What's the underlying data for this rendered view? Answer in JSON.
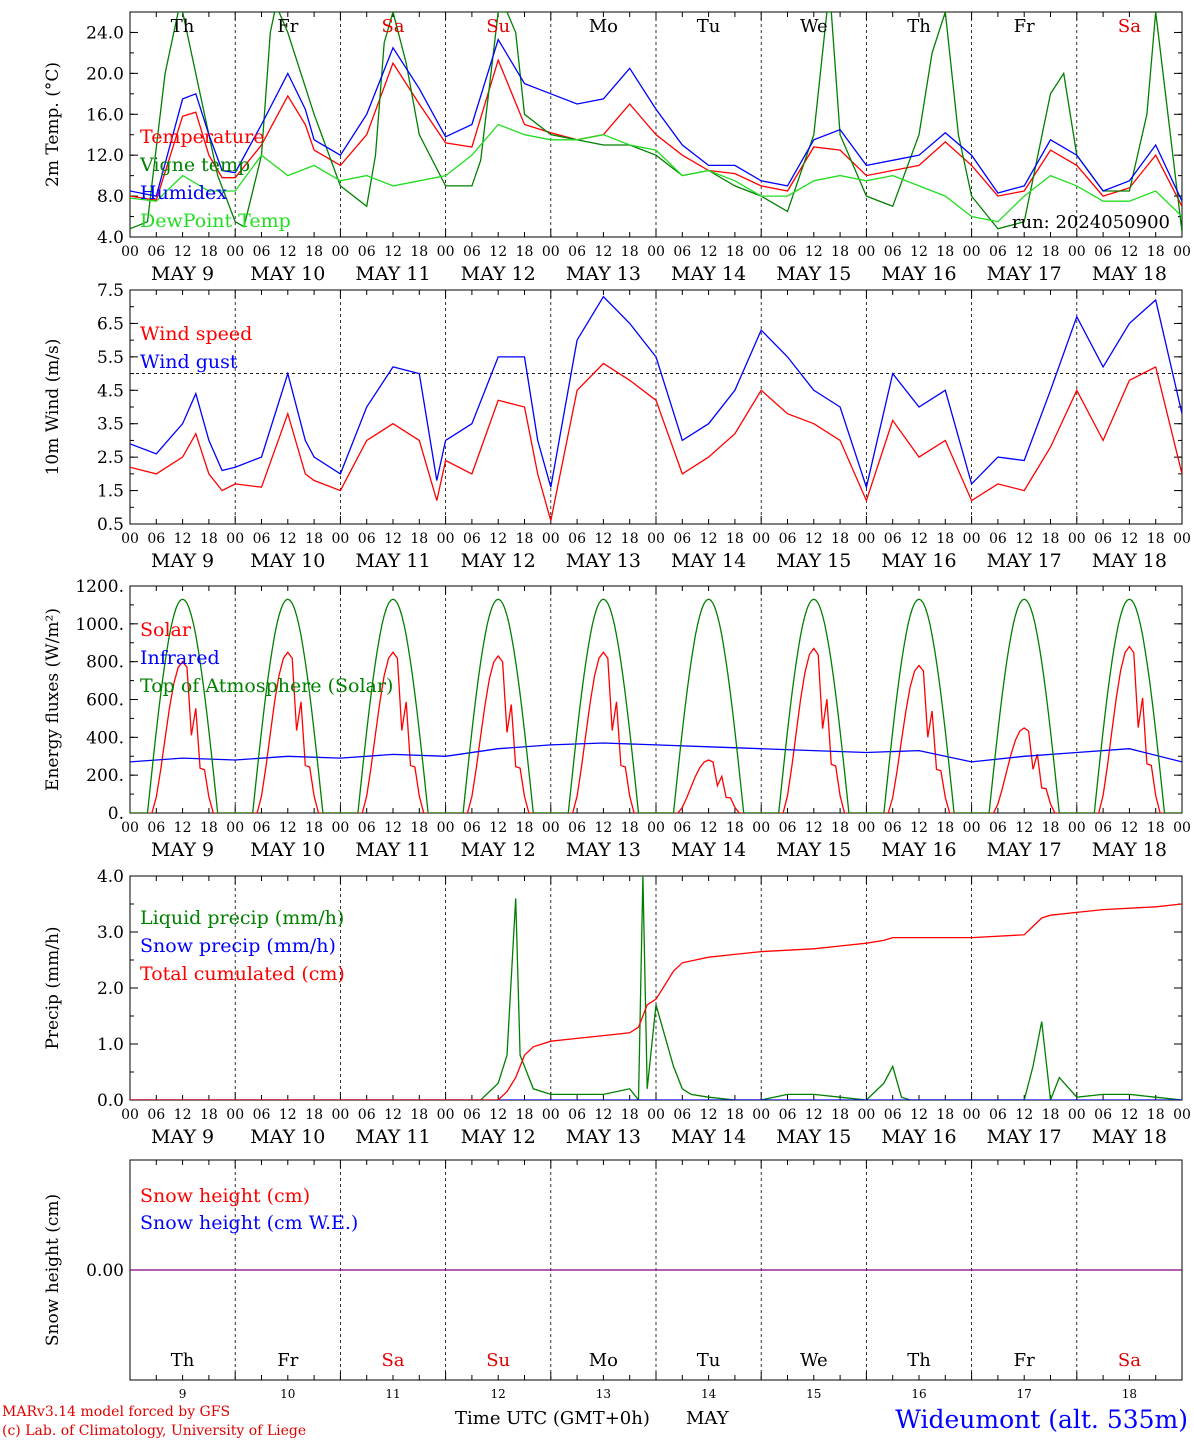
{
  "meta": {
    "run_label": "run: 2024050900",
    "credit_model": "MARv3.14 model forced by GFS",
    "credit_lab": "(c) Lab. of Climatology, University of Liege",
    "station": "Wideumont (alt. 535m)",
    "xaxis_title": "Time UTC (GMT+0h)",
    "month_label": "MAY"
  },
  "days": {
    "weekday": [
      "Th",
      "Fr",
      "Sa",
      "Su",
      "Mo",
      "Tu",
      "We",
      "Th",
      "Fr",
      "Sa"
    ],
    "weekday_colors": [
      "#000000",
      "#000000",
      "#e00000",
      "#e00000",
      "#000000",
      "#000000",
      "#000000",
      "#000000",
      "#000000",
      "#e00000"
    ],
    "date_labels": [
      "MAY  9",
      "MAY 10",
      "MAY 11",
      "MAY 12",
      "MAY 13",
      "MAY 14",
      "MAY 15",
      "MAY 16",
      "MAY 17",
      "MAY 18"
    ],
    "day_numbers": [
      "9",
      "10",
      "11",
      "12",
      "13",
      "14",
      "15",
      "16",
      "17",
      "18"
    ],
    "hour_ticks": [
      "00",
      "06",
      "12",
      "18"
    ],
    "final_tick": "00"
  },
  "colors": {
    "red": "#ff0000",
    "green": "#008000",
    "blue": "#0000ff",
    "lightgreen": "#22dd22",
    "purple": "#800080"
  },
  "chart_data": [
    {
      "type": "line",
      "id": "temp",
      "ylabel": "2m Temp. (°C)",
      "ylim": [
        4.0,
        26.0
      ],
      "yticks": [
        "4.0",
        "8.0",
        "12.0",
        "16.0",
        "20.0",
        "24.0"
      ],
      "ytick_values": [
        4,
        8,
        12,
        16,
        20,
        24
      ],
      "x_unit": "hours since MAY 9 00 UTC",
      "series": [
        {
          "name": "Temperature",
          "color": "red",
          "x": [
            0,
            6,
            12,
            15,
            18,
            21,
            24,
            30,
            36,
            40,
            42,
            48,
            54,
            60,
            66,
            72,
            78,
            84,
            90,
            96,
            102,
            108,
            114,
            120,
            126,
            132,
            138,
            144,
            150,
            156,
            162,
            168,
            174,
            180,
            186,
            192,
            198,
            204,
            210,
            216,
            222,
            228,
            234,
            240
          ],
          "y": [
            8.0,
            7.6,
            15.8,
            16.2,
            12.0,
            9.8,
            9.8,
            13.0,
            17.8,
            15.0,
            12.5,
            11.0,
            14.0,
            21.0,
            17.0,
            13.2,
            12.8,
            21.3,
            15.0,
            14.2,
            13.5,
            14.0,
            17.0,
            14.0,
            12.0,
            10.5,
            10.2,
            9.0,
            8.5,
            12.8,
            12.5,
            10.0,
            10.5,
            11.0,
            13.3,
            11.0,
            8.0,
            8.5,
            12.5,
            11.0,
            8.0,
            8.8,
            12.0,
            7.0
          ]
        },
        {
          "name": "Vigne temp",
          "color": "green",
          "x": [
            0,
            4,
            8,
            10,
            11,
            12,
            13,
            16,
            20,
            24,
            26,
            30,
            32,
            33,
            34,
            36,
            42,
            48,
            54,
            56,
            58,
            60,
            63,
            66,
            72,
            78,
            80,
            84,
            86,
            88,
            90,
            96,
            108,
            114,
            120,
            126,
            132,
            138,
            144,
            150,
            156,
            159,
            160,
            162,
            168,
            174,
            180,
            183,
            186,
            189,
            192,
            198,
            204,
            210,
            213,
            216,
            222,
            228,
            232,
            234,
            240
          ],
          "y": [
            4.8,
            5.5,
            20.0,
            24.0,
            26.0,
            26.0,
            24.0,
            18.0,
            10.0,
            5.5,
            5.0,
            12.0,
            24.0,
            26.0,
            26.0,
            24.0,
            16.0,
            9.0,
            7.0,
            12.0,
            23.0,
            26.0,
            21.0,
            14.0,
            9.0,
            9.0,
            11.5,
            26.0,
            26.0,
            24.0,
            16.0,
            14.0,
            13.0,
            13.0,
            12.0,
            10.0,
            10.5,
            9.0,
            8.0,
            6.5,
            14.0,
            26.0,
            26.0,
            14.0,
            8.0,
            7.0,
            14.0,
            22.0,
            26.0,
            14.0,
            8.0,
            4.8,
            5.5,
            18.0,
            20.0,
            12.0,
            8.5,
            8.5,
            16.0,
            26.0,
            4.5
          ]
        },
        {
          "name": "Humidex",
          "color": "blue",
          "x": [
            0,
            6,
            12,
            15,
            18,
            21,
            24,
            30,
            36,
            40,
            42,
            48,
            54,
            60,
            66,
            72,
            78,
            84,
            90,
            96,
            102,
            108,
            114,
            120,
            126,
            132,
            138,
            144,
            150,
            156,
            162,
            168,
            174,
            180,
            186,
            192,
            198,
            204,
            210,
            216,
            222,
            228,
            234,
            240
          ],
          "y": [
            8.5,
            8.0,
            17.5,
            18.0,
            14.0,
            10.5,
            10.3,
            15.0,
            20.0,
            16.5,
            13.5,
            12.0,
            16.0,
            22.5,
            18.5,
            13.8,
            15.0,
            23.3,
            19.0,
            18.0,
            17.0,
            17.5,
            20.5,
            16.5,
            13.0,
            11.0,
            11.0,
            9.5,
            9.0,
            13.5,
            14.5,
            11.0,
            11.5,
            12.0,
            14.2,
            12.0,
            8.3,
            9.0,
            13.5,
            12.0,
            8.5,
            9.5,
            13.0,
            7.5
          ]
        },
        {
          "name": "DewPoint Temp",
          "color": "lightgreen",
          "x": [
            0,
            6,
            12,
            18,
            24,
            30,
            36,
            42,
            48,
            54,
            60,
            66,
            72,
            78,
            84,
            90,
            96,
            102,
            108,
            114,
            120,
            126,
            132,
            138,
            144,
            150,
            156,
            162,
            168,
            174,
            180,
            186,
            192,
            198,
            204,
            210,
            216,
            222,
            228,
            234,
            240
          ],
          "y": [
            7.8,
            7.5,
            10.0,
            8.5,
            8.5,
            12.0,
            10.0,
            11.0,
            9.5,
            10.0,
            9.0,
            9.5,
            10.0,
            12.0,
            15.0,
            14.0,
            13.5,
            13.5,
            14.0,
            13.0,
            12.5,
            10.0,
            10.5,
            9.5,
            8.0,
            8.0,
            9.5,
            10.0,
            9.5,
            10.0,
            9.0,
            8.0,
            6.0,
            5.5,
            8.0,
            10.0,
            9.0,
            7.5,
            7.5,
            8.5,
            6.0
          ]
        }
      ]
    },
    {
      "type": "line",
      "id": "wind",
      "ylabel": "10m Wind (m/s)",
      "ylim": [
        0.5,
        7.5
      ],
      "yticks": [
        "0.5",
        "1.5",
        "2.5",
        "3.5",
        "4.5",
        "5.5",
        "6.5",
        "7.5"
      ],
      "ytick_values": [
        0.5,
        1.5,
        2.5,
        3.5,
        4.5,
        5.5,
        6.5,
        7.5
      ],
      "reference_line": 5.0,
      "series": [
        {
          "name": "Wind speed",
          "color": "red",
          "x": [
            0,
            6,
            12,
            15,
            18,
            21,
            24,
            30,
            36,
            40,
            42,
            48,
            54,
            60,
            66,
            70,
            72,
            78,
            84,
            90,
            93,
            96,
            102,
            108,
            114,
            120,
            126,
            132,
            138,
            144,
            150,
            156,
            162,
            168,
            174,
            180,
            186,
            192,
            198,
            204,
            210,
            216,
            222,
            228,
            234,
            240
          ],
          "y": [
            2.2,
            2.0,
            2.5,
            3.2,
            2.0,
            1.5,
            1.7,
            1.6,
            3.8,
            2.0,
            1.8,
            1.5,
            3.0,
            3.5,
            3.0,
            1.2,
            2.4,
            2.0,
            4.2,
            4.0,
            2.0,
            0.6,
            4.5,
            5.3,
            4.8,
            4.2,
            2.0,
            2.5,
            3.2,
            4.5,
            3.8,
            3.5,
            3.0,
            1.2,
            3.6,
            2.5,
            3.0,
            1.2,
            1.7,
            1.5,
            2.8,
            4.5,
            3.0,
            4.8,
            5.2,
            2.0
          ]
        },
        {
          "name": "Wind gust",
          "color": "blue",
          "x": [
            0,
            6,
            12,
            15,
            18,
            21,
            24,
            30,
            36,
            40,
            42,
            48,
            54,
            60,
            66,
            70,
            72,
            78,
            84,
            90,
            93,
            96,
            102,
            108,
            114,
            120,
            126,
            132,
            138,
            144,
            150,
            156,
            162,
            168,
            174,
            180,
            186,
            192,
            198,
            204,
            210,
            216,
            222,
            228,
            234,
            240
          ],
          "y": [
            2.9,
            2.6,
            3.5,
            4.4,
            3.0,
            2.1,
            2.2,
            2.5,
            5.0,
            3.0,
            2.5,
            2.0,
            4.0,
            5.2,
            5.0,
            1.8,
            3.0,
            3.5,
            5.5,
            5.5,
            3.0,
            1.6,
            6.0,
            7.3,
            6.5,
            5.5,
            3.0,
            3.5,
            4.5,
            6.3,
            5.5,
            4.5,
            4.0,
            1.6,
            5.0,
            4.0,
            4.5,
            1.7,
            2.5,
            2.4,
            4.5,
            6.7,
            5.2,
            6.5,
            7.2,
            3.8
          ]
        }
      ]
    },
    {
      "type": "line",
      "id": "energy",
      "ylabel": "Energy fluxes (W/m²)",
      "ylim": [
        0,
        1200
      ],
      "yticks": [
        "0.",
        "200.",
        "400.",
        "600.",
        "800.",
        "1000.",
        "1200."
      ],
      "ytick_values": [
        0,
        200,
        400,
        600,
        800,
        1000,
        1200
      ],
      "solar_daily_peaks": [
        800,
        850,
        850,
        830,
        850,
        280,
        870,
        780,
        450,
        880
      ],
      "series": [
        {
          "name": "Solar",
          "color": "red",
          "type": "daily-solar"
        },
        {
          "name": "Infrared",
          "color": "blue",
          "x": [
            0,
            12,
            24,
            36,
            48,
            60,
            72,
            84,
            96,
            108,
            120,
            132,
            144,
            156,
            168,
            180,
            192,
            204,
            216,
            228,
            240
          ],
          "y": [
            270,
            290,
            280,
            300,
            290,
            310,
            300,
            340,
            360,
            370,
            360,
            350,
            340,
            330,
            320,
            330,
            270,
            300,
            320,
            340,
            270
          ]
        },
        {
          "name": "Top of Atmosphere (Solar)",
          "color": "green",
          "type": "toa",
          "peak": 1130
        }
      ]
    },
    {
      "type": "line",
      "id": "precip",
      "ylabel": "Precip (mm/h)",
      "ylim": [
        0,
        4.0
      ],
      "yticks": [
        "0.0",
        "1.0",
        "2.0",
        "3.0",
        "4.0"
      ],
      "ytick_values": [
        0,
        1,
        2,
        3,
        4
      ],
      "series": [
        {
          "name": "Liquid precip (mm/h)",
          "color": "green",
          "x": [
            0,
            80,
            84,
            86,
            88,
            89,
            90,
            92,
            96,
            102,
            108,
            114,
            116,
            117,
            118,
            120,
            124,
            126,
            128,
            132,
            138,
            144,
            150,
            156,
            162,
            168,
            172,
            174,
            176,
            178,
            180,
            204,
            206,
            208,
            210,
            212,
            216,
            222,
            228,
            234,
            240
          ],
          "y": [
            0,
            0,
            0.3,
            0.8,
            3.6,
            0.8,
            0.6,
            0.2,
            0.1,
            0.1,
            0.1,
            0.2,
            0,
            4.0,
            0.2,
            1.7,
            0.6,
            0.2,
            0.1,
            0.05,
            0,
            0,
            0.1,
            0.1,
            0.05,
            0,
            0.3,
            0.6,
            0.05,
            0,
            0,
            0,
            0.6,
            1.4,
            0,
            0.4,
            0.05,
            0.1,
            0.1,
            0.05,
            0
          ]
        },
        {
          "name": "Snow precip (mm/h)",
          "color": "blue",
          "x": [
            0,
            240
          ],
          "y": [
            0,
            0
          ]
        },
        {
          "name": "Total cumulated (cm)",
          "color": "red",
          "x": [
            0,
            84,
            86,
            88,
            90,
            92,
            96,
            102,
            108,
            114,
            116,
            118,
            120,
            124,
            126,
            132,
            138,
            144,
            156,
            162,
            168,
            172,
            174,
            180,
            192,
            204,
            206,
            208,
            210,
            216,
            222,
            234,
            240
          ],
          "y": [
            0,
            0,
            0.15,
            0.4,
            0.8,
            0.95,
            1.05,
            1.1,
            1.15,
            1.2,
            1.3,
            1.7,
            1.8,
            2.3,
            2.45,
            2.55,
            2.6,
            2.65,
            2.7,
            2.75,
            2.8,
            2.85,
            2.9,
            2.9,
            2.9,
            2.95,
            3.1,
            3.25,
            3.3,
            3.35,
            3.4,
            3.45,
            3.5
          ]
        }
      ]
    },
    {
      "type": "line",
      "id": "snow",
      "ylabel": "Snow height (cm)",
      "ylim": [
        -1.0,
        1.0
      ],
      "yticks": [
        "0.00"
      ],
      "ytick_values": [
        0
      ],
      "series": [
        {
          "name": "Snow height (cm)",
          "color": "red",
          "x": [
            0,
            240
          ],
          "y": [
            0,
            0
          ]
        },
        {
          "name": "Snow height (cm W.E.)",
          "color": "blue",
          "x": [
            0,
            240
          ],
          "y": [
            0,
            0
          ]
        }
      ]
    }
  ]
}
